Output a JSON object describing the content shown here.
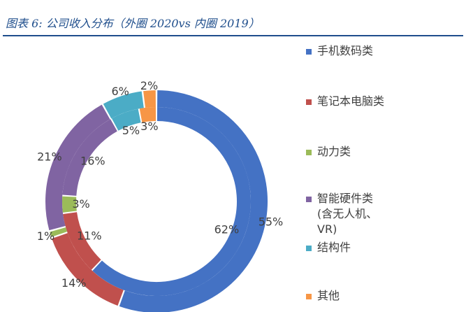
{
  "header": {
    "title": "图表 6:  公司收入分布（外圈 2020vs 内圈 2019）"
  },
  "colors": {
    "blue": "#4472c4",
    "red": "#c0504d",
    "green": "#9bbb59",
    "purple": "#8064a2",
    "teal": "#4bacc6",
    "orange": "#f79646"
  },
  "chart_data": {
    "type": "pie",
    "style": "double-ring donut",
    "categories": [
      "手机数码类",
      "笔记本电脑类",
      "动力类",
      "智能硬件类\n(含无人机、\nVR)",
      "结构件",
      "其他"
    ],
    "colors": [
      "#4472c4",
      "#c0504d",
      "#9bbb59",
      "#8064a2",
      "#4bacc6",
      "#f79646"
    ],
    "series": [
      {
        "ring": "outer",
        "values": [
          55,
          14,
          1,
          21,
          6,
          2
        ],
        "labels": [
          "55%",
          "14%",
          "1%",
          "21%",
          "6%",
          "2%"
        ]
      },
      {
        "ring": "inner",
        "values": [
          62,
          11,
          3,
          16,
          5,
          3
        ],
        "labels": [
          "62%",
          "11%",
          "3%",
          "16%",
          "5%",
          "3%"
        ]
      }
    ],
    "legend_position": "right"
  }
}
